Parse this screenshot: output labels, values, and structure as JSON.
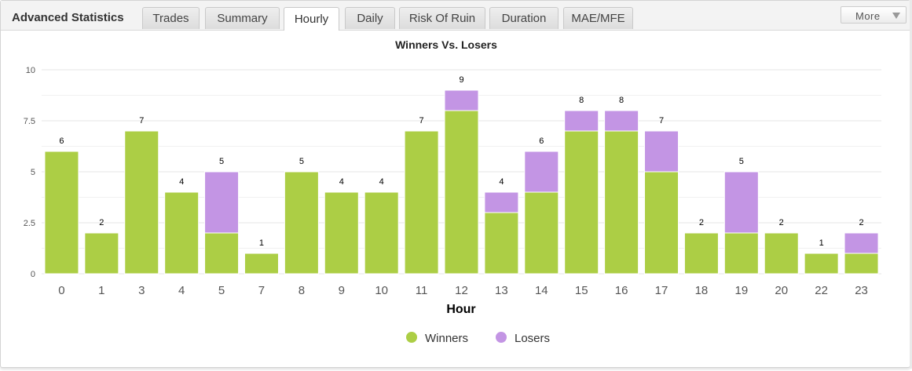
{
  "header": {
    "title": "Advanced Statistics",
    "tabs": [
      {
        "label": "Trades",
        "active": false
      },
      {
        "label": "Summary",
        "active": false
      },
      {
        "label": "Hourly",
        "active": true
      },
      {
        "label": "Daily",
        "active": false
      },
      {
        "label": "Risk Of Ruin",
        "active": false
      },
      {
        "label": "Duration",
        "active": false
      },
      {
        "label": "MAE/MFE",
        "active": false
      }
    ],
    "more_label": "More",
    "more_icon": "chevron-down-icon"
  },
  "chart_data": {
    "type": "bar",
    "stacked": true,
    "title": "Winners Vs. Losers",
    "xlabel": "Hour",
    "ylabel": "",
    "ylim": [
      0,
      10
    ],
    "yticks": [
      "0",
      "2.5",
      "5",
      "7.5",
      "10"
    ],
    "categories": [
      "0",
      "1",
      "3",
      "4",
      "5",
      "7",
      "8",
      "9",
      "10",
      "11",
      "12",
      "13",
      "14",
      "15",
      "16",
      "17",
      "18",
      "19",
      "20",
      "22",
      "23"
    ],
    "series": [
      {
        "name": "Winners",
        "color": "#acce45",
        "values": [
          6,
          2,
          7,
          4,
          2,
          1,
          5,
          4,
          4,
          7,
          8,
          3,
          4,
          7,
          7,
          5,
          2,
          2,
          2,
          1,
          1
        ]
      },
      {
        "name": "Losers",
        "color": "#c395e4",
        "values": [
          0,
          0,
          0,
          0,
          3,
          0,
          0,
          0,
          0,
          0,
          1,
          1,
          2,
          1,
          1,
          2,
          0,
          3,
          0,
          0,
          1
        ]
      }
    ],
    "totals": [
      6,
      2,
      7,
      4,
      5,
      1,
      5,
      4,
      4,
      7,
      9,
      4,
      6,
      8,
      8,
      7,
      2,
      5,
      2,
      1,
      2
    ],
    "grid": true,
    "legend": "bottom-center"
  }
}
